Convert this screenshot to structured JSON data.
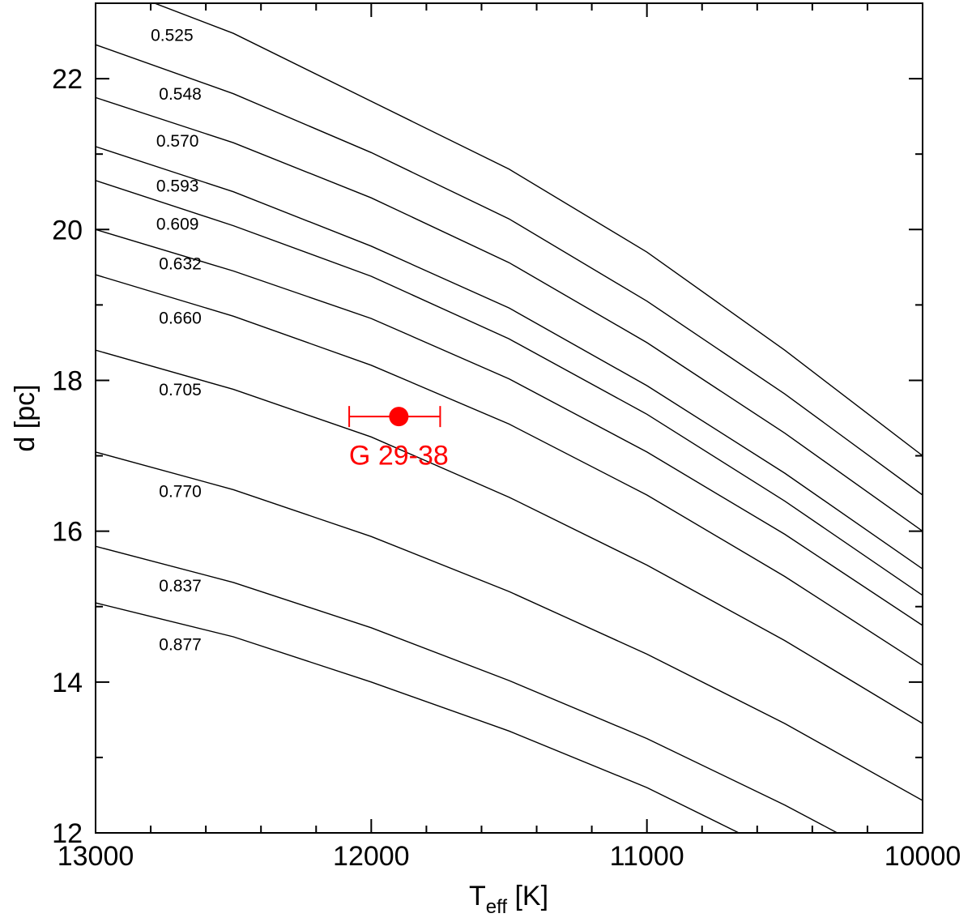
{
  "chart_data": {
    "type": "line",
    "xlabel_main": "T",
    "xlabel_sub": "eff",
    "xlabel_unit": " [K]",
    "ylabel": "d [pc]",
    "xlim": [
      13000,
      10000
    ],
    "ylim": [
      12,
      23
    ],
    "x_ticks": [
      13000,
      12000,
      11000,
      10000
    ],
    "x_tick_labels": [
      "13000",
      "12000",
      "11000",
      "10000"
    ],
    "x_minor_step": 200,
    "y_ticks": [
      12,
      14,
      16,
      18,
      20,
      22
    ],
    "y_tick_labels": [
      "12",
      "14",
      "16",
      "18",
      "20",
      "22"
    ],
    "y_minor_step": 1,
    "x": [
      13000,
      12500,
      12000,
      11500,
      11000,
      10500,
      10000
    ],
    "series": [
      {
        "name": "0.525",
        "label_at": [
          12800,
          22.5
        ],
        "values": [
          23.3,
          22.6,
          21.7,
          20.8,
          19.7,
          18.4,
          17.0
        ]
      },
      {
        "name": "0.548",
        "label_at": [
          12770,
          21.72
        ],
        "values": [
          22.45,
          21.8,
          21.02,
          20.14,
          19.05,
          17.82,
          16.48
        ]
      },
      {
        "name": "0.570",
        "label_at": [
          12780,
          21.1
        ],
        "values": [
          21.75,
          21.15,
          20.42,
          19.56,
          18.5,
          17.3,
          16.0
        ]
      },
      {
        "name": "0.593",
        "label_at": [
          12780,
          20.5
        ],
        "values": [
          21.1,
          20.5,
          19.78,
          18.96,
          17.93,
          16.77,
          15.5
        ]
      },
      {
        "name": "0.609",
        "label_at": [
          12780,
          20.0
        ],
        "values": [
          20.65,
          20.05,
          19.38,
          18.55,
          17.55,
          16.4,
          15.15
        ]
      },
      {
        "name": "0.632",
        "label_at": [
          12770,
          19.47
        ],
        "values": [
          20.0,
          19.45,
          18.82,
          18.02,
          17.05,
          15.96,
          14.75
        ]
      },
      {
        "name": "0.660",
        "label_at": [
          12770,
          18.75
        ],
        "values": [
          19.4,
          18.85,
          18.2,
          17.42,
          16.48,
          15.4,
          14.22
        ]
      },
      {
        "name": "0.705",
        "label_at": [
          12770,
          17.8
        ],
        "values": [
          18.4,
          17.88,
          17.25,
          16.45,
          15.55,
          14.55,
          13.45
        ]
      },
      {
        "name": "0.770",
        "label_at": [
          12770,
          16.45
        ],
        "values": [
          17.05,
          16.55,
          15.93,
          15.2,
          14.37,
          13.45,
          12.43
        ]
      },
      {
        "name": "0.837",
        "label_at": [
          12770,
          15.2
        ],
        "values": [
          15.8,
          15.32,
          14.72,
          14.02,
          13.25,
          12.37,
          11.4
        ]
      },
      {
        "name": "0.877",
        "label_at": [
          12770,
          14.42
        ],
        "values": [
          15.05,
          14.6,
          14.0,
          13.35,
          12.6,
          11.7,
          10.7
        ]
      }
    ],
    "point": {
      "label": "G 29-38",
      "x": 11900,
      "y": 17.52,
      "x_err_low": 12080,
      "x_err_high": 11750,
      "label_at": [
        11900,
        16.88
      ],
      "color": "#ff0000"
    },
    "line_color": "#000000",
    "grid": false
  }
}
